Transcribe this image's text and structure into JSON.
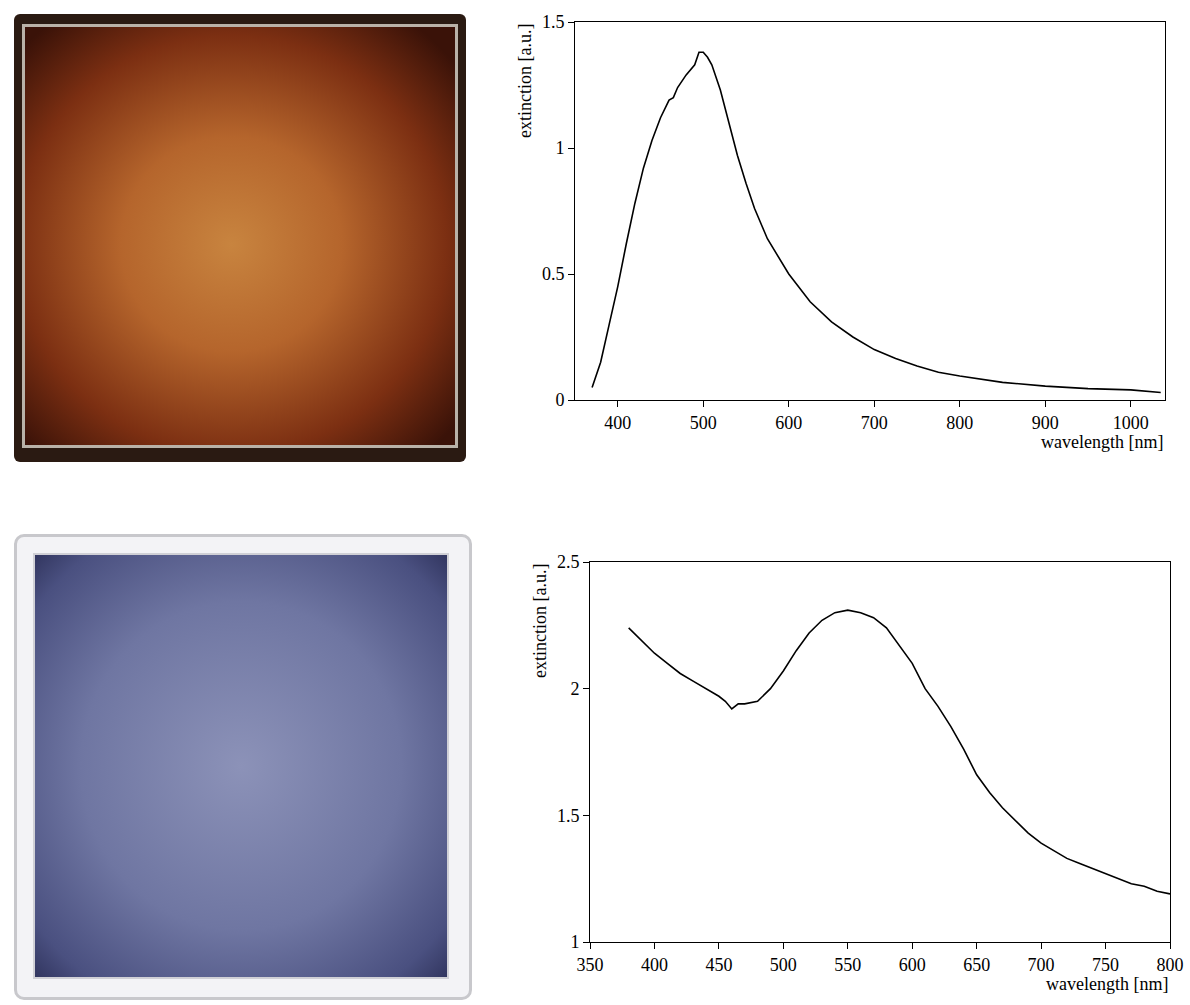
{
  "chart_data": [
    {
      "type": "line",
      "x_label": "wavelength [nm]",
      "y_label": "extinction [a.u.]",
      "x": [
        370,
        380,
        390,
        400,
        410,
        420,
        430,
        440,
        450,
        460,
        465,
        470,
        480,
        490,
        495,
        500,
        505,
        510,
        520,
        530,
        540,
        550,
        560,
        575,
        600,
        625,
        650,
        675,
        700,
        725,
        750,
        775,
        800,
        850,
        900,
        950,
        1000,
        1035
      ],
      "values": [
        0.05,
        0.15,
        0.3,
        0.45,
        0.62,
        0.78,
        0.92,
        1.03,
        1.12,
        1.19,
        1.2,
        1.24,
        1.29,
        1.33,
        1.38,
        1.38,
        1.36,
        1.33,
        1.23,
        1.1,
        0.97,
        0.86,
        0.76,
        0.64,
        0.5,
        0.39,
        0.31,
        0.25,
        0.2,
        0.165,
        0.135,
        0.11,
        0.095,
        0.07,
        0.055,
        0.045,
        0.04,
        0.03
      ],
      "color": "#000000",
      "xlim": [
        350,
        1040
      ],
      "xticks": [
        400,
        500,
        600,
        700,
        800,
        900,
        1000
      ],
      "ylim": [
        0,
        1.5
      ],
      "yticks": [
        0,
        0.5,
        1,
        1.5
      ],
      "grid": false
    },
    {
      "type": "line",
      "x_label": "wavelength [nm]",
      "y_label": "extinction [a.u.]",
      "x": [
        380,
        390,
        400,
        410,
        420,
        430,
        440,
        450,
        455,
        460,
        465,
        470,
        480,
        490,
        500,
        510,
        520,
        530,
        540,
        550,
        560,
        570,
        580,
        590,
        600,
        610,
        620,
        630,
        640,
        650,
        660,
        670,
        680,
        690,
        700,
        710,
        720,
        730,
        740,
        750,
        760,
        770,
        780,
        790,
        800
      ],
      "values": [
        2.24,
        2.19,
        2.14,
        2.1,
        2.06,
        2.03,
        2.0,
        1.97,
        1.95,
        1.92,
        1.94,
        1.94,
        1.95,
        2.0,
        2.07,
        2.15,
        2.22,
        2.27,
        2.3,
        2.31,
        2.3,
        2.28,
        2.24,
        2.17,
        2.1,
        2.0,
        1.93,
        1.85,
        1.76,
        1.66,
        1.59,
        1.53,
        1.48,
        1.43,
        1.39,
        1.36,
        1.33,
        1.31,
        1.29,
        1.27,
        1.25,
        1.23,
        1.22,
        1.2,
        1.19
      ],
      "color": "#000000",
      "xlim": [
        350,
        800
      ],
      "xticks": [
        350,
        400,
        450,
        500,
        550,
        600,
        650,
        700,
        750,
        800
      ],
      "ylim": [
        1,
        2.5
      ],
      "yticks": [
        1,
        1.5,
        2,
        2.5
      ],
      "grid": false
    }
  ]
}
